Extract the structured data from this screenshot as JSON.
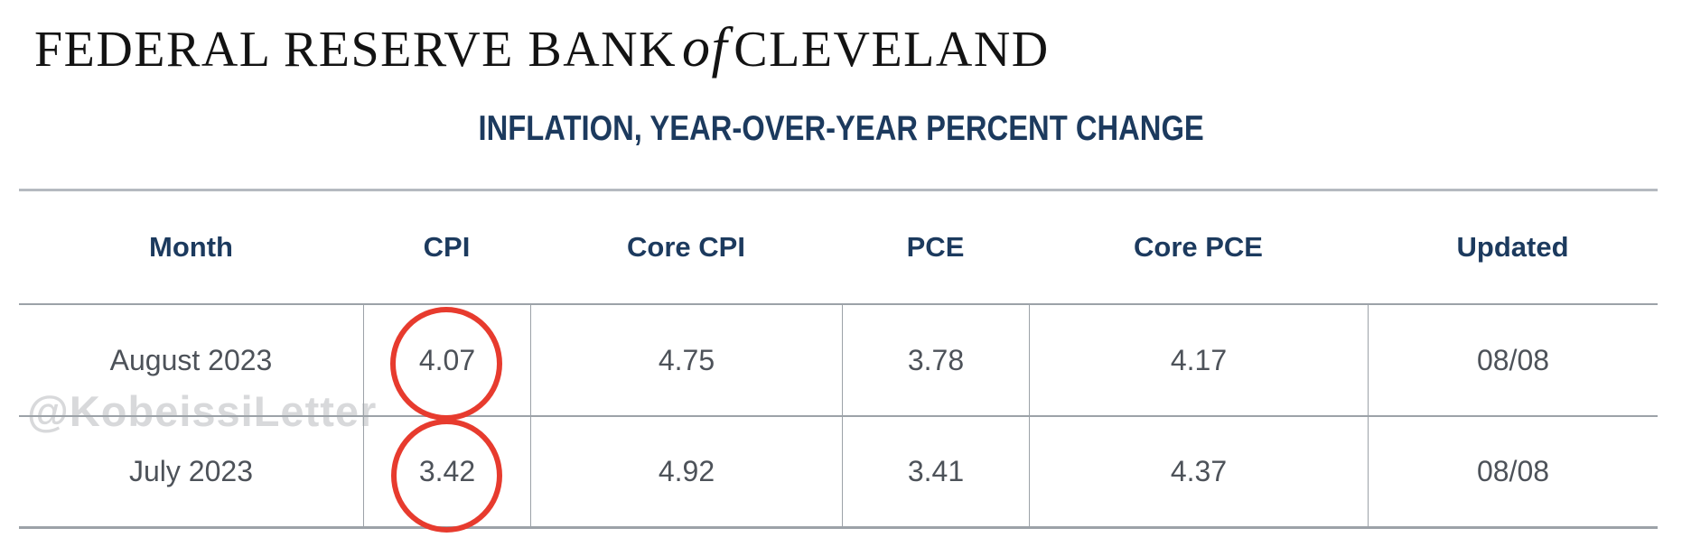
{
  "brand": {
    "prefix": "FEDERAL RESERVE BANK",
    "connector": "of",
    "suffix": "CLEVELAND"
  },
  "title": "INFLATION, YEAR-OVER-YEAR PERCENT CHANGE",
  "watermark": "@KobeissiLetter",
  "table": {
    "headers": [
      "Month",
      "CPI",
      "Core CPI",
      "PCE",
      "Core PCE",
      "Updated"
    ],
    "rows": [
      {
        "month": "August 2023",
        "cpi": "4.07",
        "core_cpi": "4.75",
        "pce": "3.78",
        "core_pce": "4.17",
        "updated": "08/08"
      },
      {
        "month": "July 2023",
        "cpi": "3.42",
        "core_cpi": "4.92",
        "pce": "3.41",
        "core_pce": "4.37",
        "updated": "08/08"
      }
    ]
  },
  "annotations": {
    "circled_values": [
      "4.07",
      "3.42"
    ],
    "circled_column": "CPI",
    "circle_color": "#e73b2e"
  },
  "colors": {
    "navy": "#1c3a5e",
    "cell_text": "#4d5259",
    "grid_line": "#9ca2a8",
    "top_line": "#b5bac0",
    "red_circle": "#e73b2e",
    "watermark": "#d8d9db",
    "logo_text": "#131313",
    "background": "#ffffff"
  },
  "chart_data": {
    "type": "table",
    "title": "INFLATION, YEAR-OVER-YEAR PERCENT CHANGE",
    "columns": [
      "Month",
      "CPI",
      "Core CPI",
      "PCE",
      "Core PCE",
      "Updated"
    ],
    "categories": [
      "August 2023",
      "July 2023"
    ],
    "series": [
      {
        "name": "CPI",
        "values": [
          4.07,
          3.42
        ]
      },
      {
        "name": "Core CPI",
        "values": [
          4.75,
          4.92
        ]
      },
      {
        "name": "PCE",
        "values": [
          3.78,
          3.41
        ]
      },
      {
        "name": "Core PCE",
        "values": [
          4.17,
          4.37
        ]
      }
    ],
    "updated": [
      "08/08",
      "08/08"
    ],
    "annotations": [
      "CPI values 4.07 (August 2023) and 3.42 (July 2023) are circled in red"
    ]
  }
}
